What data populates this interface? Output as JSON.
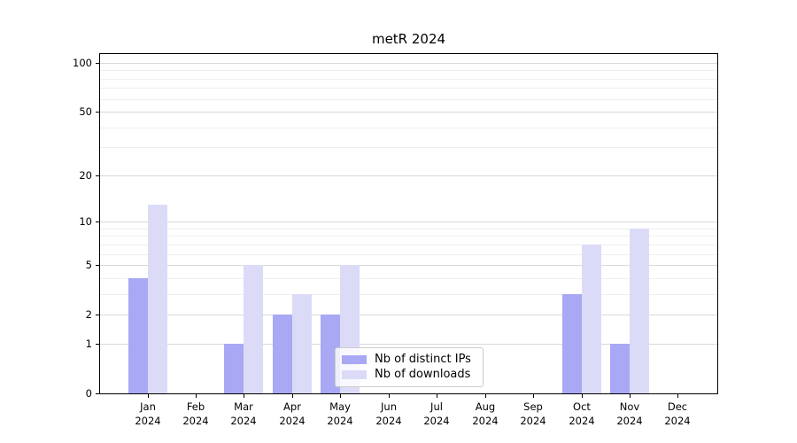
{
  "title": "metR 2024",
  "chart_data": {
    "type": "bar",
    "title": "metR 2024",
    "year_label": "2024",
    "categories": [
      "Jan",
      "Feb",
      "Mar",
      "Apr",
      "May",
      "Jun",
      "Jul",
      "Aug",
      "Sep",
      "Oct",
      "Nov",
      "Dec"
    ],
    "series": [
      {
        "name": "Nb of distinct IPs",
        "color": "#a8a8f5",
        "values": [
          4,
          0,
          1,
          2,
          2,
          0,
          0,
          0,
          0,
          3,
          1,
          0
        ]
      },
      {
        "name": "Nb of downloads",
        "color": "#dbdbf8",
        "values": [
          13,
          0,
          5,
          3,
          5,
          0,
          0,
          0,
          0,
          7,
          9,
          0
        ]
      }
    ],
    "yscale": "log1p",
    "ylim": [
      0,
      115
    ],
    "y_major_ticks": [
      0,
      1,
      2,
      5,
      10,
      20,
      50,
      100
    ],
    "y_tick_labels": [
      "0",
      "1",
      "2",
      "5",
      "10",
      "20",
      "50",
      "100"
    ],
    "y_minor_gridlines": [
      3,
      4,
      6,
      7,
      8,
      9,
      30,
      40,
      60,
      70,
      80,
      90
    ],
    "grid": "horizontal",
    "legend_position": "lower center"
  },
  "colors": {
    "bar_distinct_ips": "#a8a8f5",
    "bar_downloads": "#dbdbf8",
    "grid_major": "#d9d9d9",
    "grid_minor": "#efefef",
    "spine": "#000000",
    "background": "#ffffff",
    "legend_border": "#cccccc",
    "text": "#000000"
  }
}
